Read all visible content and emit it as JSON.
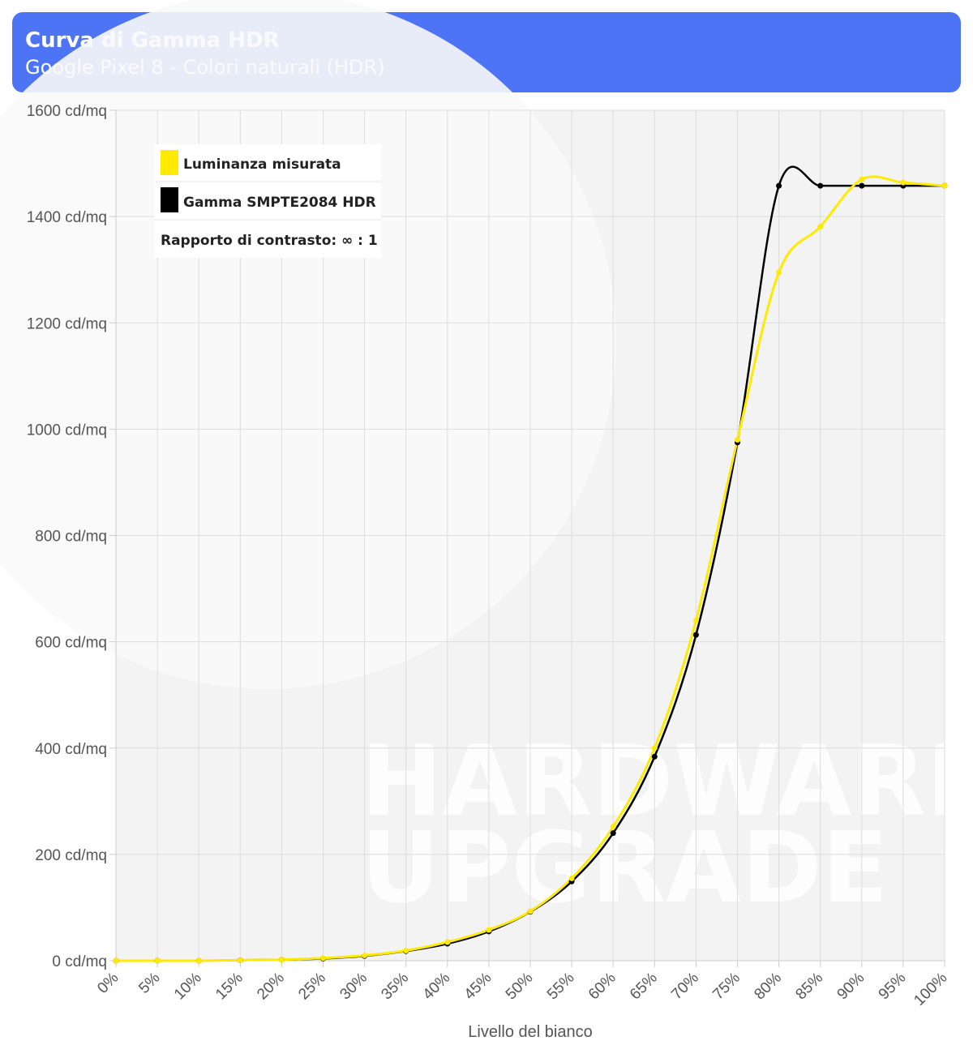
{
  "header": {
    "title": "Curva di Gamma HDR",
    "subtitle": "Google Pixel 8 - Colori naturali (HDR)"
  },
  "watermark": {
    "line1": "HARDWARE",
    "line2": "UPGRADE"
  },
  "colors": {
    "header_bg": "#4d74f5",
    "measured": "#ffea00",
    "target": "#000000",
    "plot_bg": "#f3f3f3"
  },
  "chart_data": {
    "type": "line",
    "title": "Curva di Gamma HDR",
    "subtitle": "Google Pixel 8 - Colori naturali (HDR)",
    "xlabel": "Livello del bianco",
    "ylabel": "",
    "x": [
      "0%",
      "5%",
      "10%",
      "15%",
      "20%",
      "25%",
      "30%",
      "35%",
      "40%",
      "45%",
      "50%",
      "55%",
      "60%",
      "65%",
      "70%",
      "75%",
      "80%",
      "85%",
      "90%",
      "95%",
      "100%"
    ],
    "ylim": [
      0,
      1600
    ],
    "y_ticks": [
      0,
      200,
      400,
      600,
      800,
      1000,
      1200,
      1400,
      1600
    ],
    "y_tick_labels": [
      "0 cd/mq",
      "200 cd/mq",
      "400 cd/mq",
      "600 cd/mq",
      "800 cd/mq",
      "1000 cd/mq",
      "1200 cd/mq",
      "1400 cd/mq",
      "1600 cd/mq"
    ],
    "grid": true,
    "legend_position": "top-left",
    "series": [
      {
        "name": "Luminanza misurata",
        "color": "#ffea00",
        "values": [
          0,
          0,
          0,
          1,
          2,
          5,
          10,
          19,
          35,
          58,
          93,
          155,
          252,
          400,
          640,
          980,
          1295,
          1381,
          1470,
          1464,
          1458
        ]
      },
      {
        "name": "Gamma SMPTE2084 HDR",
        "color": "#000000",
        "values": [
          0,
          0,
          0,
          1,
          2,
          4,
          9,
          18,
          32,
          55,
          92,
          149,
          240,
          384,
          613,
          975,
          1458,
          1458,
          1458,
          1458,
          1458
        ]
      }
    ],
    "legend_note": "Rapporto di contrasto: ∞ : 1"
  }
}
